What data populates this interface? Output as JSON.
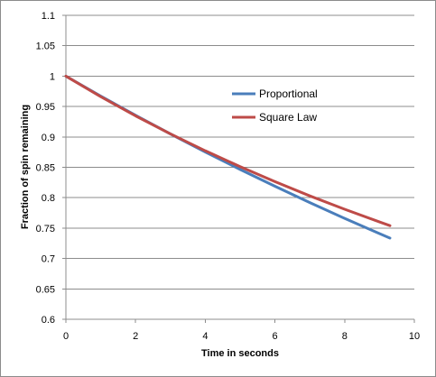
{
  "chart_data": {
    "type": "line",
    "title": "",
    "xlabel": "Time in seconds",
    "ylabel": "Fraction of spin remaining",
    "xlim": [
      0,
      10
    ],
    "ylim": [
      0.6,
      1.1
    ],
    "x_ticks": [
      "0",
      "2",
      "4",
      "6",
      "8",
      "10"
    ],
    "y_ticks": [
      "0.6",
      "0.65",
      "0.7",
      "0.75",
      "0.8",
      "0.85",
      "0.9",
      "0.95",
      "1",
      "1.05",
      "1.1"
    ],
    "grid": "horizontal",
    "legend_position": "center-right",
    "series": [
      {
        "name": "Proportional",
        "color": "#4a7ebb",
        "x": [
          0,
          1,
          2,
          3,
          4,
          5,
          6,
          7,
          8,
          9,
          9.3
        ],
        "y": [
          1.0,
          0.9672,
          0.9355,
          0.9049,
          0.8752,
          0.8465,
          0.8188,
          0.792,
          0.766,
          0.7409,
          0.7336
        ]
      },
      {
        "name": "Square Law",
        "color": "#be4b48",
        "x": [
          0,
          1,
          2,
          3,
          4,
          5,
          6,
          7,
          8,
          9,
          9.3
        ],
        "y": [
          1.0,
          0.9662,
          0.9346,
          0.905,
          0.8772,
          0.8511,
          0.8264,
          0.803,
          0.781,
          0.7602,
          0.754
        ]
      }
    ]
  }
}
